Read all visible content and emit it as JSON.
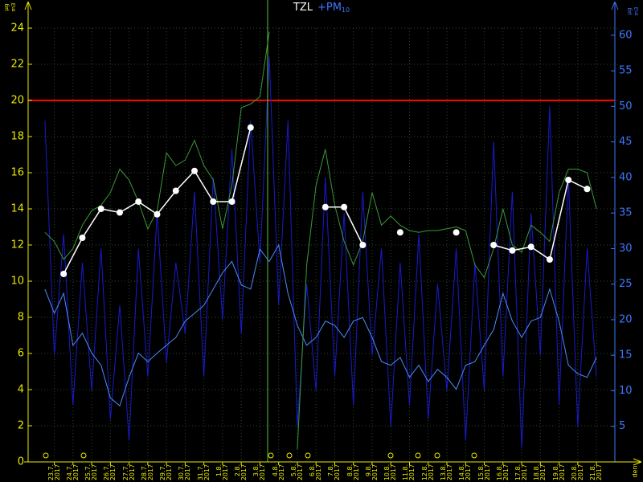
{
  "chart_data": {
    "type": "line",
    "title": "TZL",
    "subtitle": "+PM",
    "subtitle_sub": "10",
    "y_unit": {
      "top": "µg",
      "bottom": "m3"
    },
    "y2_unit": {
      "top": "µg",
      "bottom": "m3"
    },
    "x_label": "den",
    "xlim": [
      -1.4,
      30.2
    ],
    "ylim": [
      0,
      24
    ],
    "y2lim": [
      0,
      61
    ],
    "yticks": [
      0,
      2,
      4,
      6,
      8,
      10,
      12,
      14,
      16,
      18,
      20,
      22,
      24
    ],
    "y2ticks": [
      5,
      10,
      15,
      20,
      25,
      30,
      35,
      40,
      45,
      50,
      55,
      60
    ],
    "xticks": [
      {
        "value": 0,
        "label": "23.7.\n2017"
      },
      {
        "value": 1,
        "label": "24.7.\n2017"
      },
      {
        "value": 2,
        "label": "25.7.\n2017"
      },
      {
        "value": 3,
        "label": "26.7.\n2017"
      },
      {
        "value": 4,
        "label": "27.7.\n2017"
      },
      {
        "value": 5,
        "label": "28.7.\n2017"
      },
      {
        "value": 6,
        "label": "29.7.\n2017"
      },
      {
        "value": 7,
        "label": "30.7.\n2017"
      },
      {
        "value": 8,
        "label": "31.7.\n2017"
      },
      {
        "value": 9,
        "label": "1.8.\n2017"
      },
      {
        "value": 10,
        "label": "2.8.\n2017"
      },
      {
        "value": 11,
        "label": "3.8.\n2017"
      },
      {
        "value": 12,
        "label": "4.8.\n2017"
      },
      {
        "value": 13,
        "label": "5.8.\n2017"
      },
      {
        "value": 14,
        "label": "6.8.\n2017"
      },
      {
        "value": 15,
        "label": "7.8.\n2017"
      },
      {
        "value": 16,
        "label": "8.8.\n2017"
      },
      {
        "value": 17,
        "label": "9.8.\n2017"
      },
      {
        "value": 18,
        "label": "10.8.\n2017"
      },
      {
        "value": 19,
        "label": "11.8.\n2017"
      },
      {
        "value": 20,
        "label": "12.8.\n2017"
      },
      {
        "value": 21,
        "label": "13.8.\n2017"
      },
      {
        "value": 22,
        "label": "14.8.\n2017"
      },
      {
        "value": 23,
        "label": "15.8.\n2017"
      },
      {
        "value": 24,
        "label": "16.8.\n2017"
      },
      {
        "value": 25,
        "label": "17.8.\n2017"
      },
      {
        "value": 26,
        "label": "18.8.\n2017"
      },
      {
        "value": 27,
        "label": "19.8.\n2017"
      },
      {
        "value": 28,
        "label": "20.8.\n2017"
      },
      {
        "value": 29,
        "label": "21.8.\n2017"
      }
    ],
    "grid": true,
    "threshold": {
      "value": 20,
      "color": "#ff0000"
    },
    "series": [
      {
        "color": "#1a1acc",
        "axis": "y2",
        "markers": false,
        "x": [
          -0.5,
          0,
          0.5,
          1,
          1.5,
          2,
          2.5,
          3,
          3.5,
          4,
          4.5,
          5,
          5.5,
          6,
          6.5,
          7,
          7.5,
          8,
          8.5,
          9,
          9.5,
          10,
          10.5,
          11,
          11.5,
          12,
          12.5,
          13,
          13.5,
          14,
          14.5,
          15,
          15.5,
          16,
          16.5,
          17,
          17.5,
          18,
          18.5,
          19,
          19.5,
          20,
          20.5,
          21,
          21.5,
          22,
          22.5,
          23,
          23.5,
          24,
          24.5,
          25,
          25.5,
          26,
          26.5,
          27,
          27.5,
          28,
          28.5,
          29
        ],
        "values": [
          48,
          15,
          32,
          8,
          28,
          10,
          30,
          6,
          22,
          3,
          30,
          12,
          35,
          14,
          28,
          18,
          38,
          12,
          40,
          20,
          44,
          18,
          48,
          28,
          57,
          22,
          48,
          5,
          25,
          10,
          40,
          12,
          35,
          8,
          38,
          15,
          30,
          5,
          28,
          8,
          32,
          6,
          25,
          10,
          30,
          3,
          28,
          10,
          45,
          12,
          38,
          2,
          35,
          15,
          50,
          8,
          40,
          5,
          30,
          12
        ]
      },
      {
        "color": "#4a8cff",
        "axis": "y2",
        "markers": false,
        "x": [
          -0.5,
          0,
          0.5,
          1,
          1.5,
          2,
          2.5,
          3,
          3.5,
          4,
          4.5,
          5,
          5.5,
          6,
          6.5,
          7,
          7.5,
          8,
          8.5,
          9,
          9.5,
          10,
          10.5,
          11,
          11.5,
          12,
          12.5,
          13,
          13.5,
          14,
          14.5,
          15,
          15.5,
          16,
          16.5,
          17,
          17.5,
          18,
          18.5,
          19,
          19.5,
          20,
          20.5,
          21,
          21.5,
          22,
          22.5,
          23,
          23.5,
          24,
          24.5,
          25,
          25.5,
          26,
          26.5,
          27,
          27.5,
          28,
          28.5,
          29
        ],
        "values": [
          24.3,
          20.9,
          23.7,
          16.4,
          18.1,
          15.3,
          13.6,
          9.0,
          7.9,
          11.9,
          15.3,
          14.1,
          15.3,
          16.4,
          17.5,
          19.8,
          20.9,
          22.0,
          24.3,
          26.6,
          28.2,
          24.9,
          24.3,
          29.9,
          28.2,
          30.5,
          23.7,
          19.2,
          16.4,
          17.5,
          19.8,
          19.2,
          17.5,
          19.8,
          20.3,
          17.5,
          14.1,
          13.6,
          14.7,
          11.9,
          13.6,
          11.3,
          13.0,
          11.9,
          10.2,
          13.6,
          14.1,
          16.4,
          18.6,
          23.7,
          19.8,
          17.5,
          19.8,
          20.3,
          24.3,
          19.8,
          13.6,
          12.4,
          11.9,
          14.7
        ]
      },
      {
        "color": "#3a9a3a",
        "axis": "y",
        "markers": false,
        "x": [
          -0.5,
          0,
          0.5,
          1,
          1.5,
          2,
          2.5,
          3,
          3.5,
          4,
          4.5,
          5,
          5.5,
          6,
          6.5,
          7,
          7.5,
          8,
          8.5,
          9,
          9.5,
          10,
          10.5,
          11,
          11.5,
          12,
          12.5,
          13,
          13.5,
          14,
          14.5,
          15,
          15.5,
          16,
          16.5,
          17,
          17.5,
          18,
          18.5,
          19,
          19.5,
          20,
          20.5,
          21,
          21.5,
          22,
          22.5,
          23,
          23.5,
          24,
          24.5,
          25,
          25.5,
          26,
          26.5,
          27,
          27.5,
          28,
          28.5,
          29
        ],
        "values": [
          12.7,
          12.2,
          11.2,
          11.8,
          13.1,
          13.9,
          14.2,
          14.9,
          16.2,
          15.6,
          14.4,
          12.9,
          13.9,
          17.1,
          16.4,
          16.7,
          17.8,
          16.4,
          15.6,
          12.9,
          15.3,
          19.6,
          19.8,
          20.2,
          23.8,
          null,
          null,
          0.7,
          10.9,
          15.3,
          17.3,
          14.2,
          12.2,
          10.9,
          12.2,
          14.9,
          13.1,
          13.6,
          13.1,
          12.8,
          12.7,
          12.8,
          12.8,
          12.9,
          13.0,
          12.8,
          10.9,
          10.2,
          11.8,
          14.0,
          12.0,
          11.6,
          13.1,
          12.7,
          12.2,
          14.9,
          16.2,
          16.2,
          16.0,
          14.0
        ]
      },
      {
        "color": "#ffffff",
        "axis": "y",
        "markers": true,
        "x": [
          0.5,
          1.5,
          2.5,
          3.5,
          4.5,
          5.5,
          6.5,
          7.5,
          8.5,
          9.5,
          10.5,
          11.5,
          12.5,
          13.5,
          14.5,
          15.5,
          16.5,
          17.5,
          18.5,
          19.5,
          20.5,
          21.5,
          22.5,
          23.5,
          24.5,
          25.5,
          26.5,
          27.5,
          28.5
        ],
        "values": [
          10.4,
          12.4,
          14.0,
          13.8,
          14.4,
          13.7,
          15.0,
          16.1,
          14.4,
          14.4,
          18.5,
          null,
          null,
          null,
          14.1,
          14.1,
          12.0,
          null,
          12.7,
          null,
          null,
          12.7,
          null,
          12.0,
          11.7,
          11.9,
          11.2,
          15.6,
          15.1
        ]
      }
    ]
  }
}
